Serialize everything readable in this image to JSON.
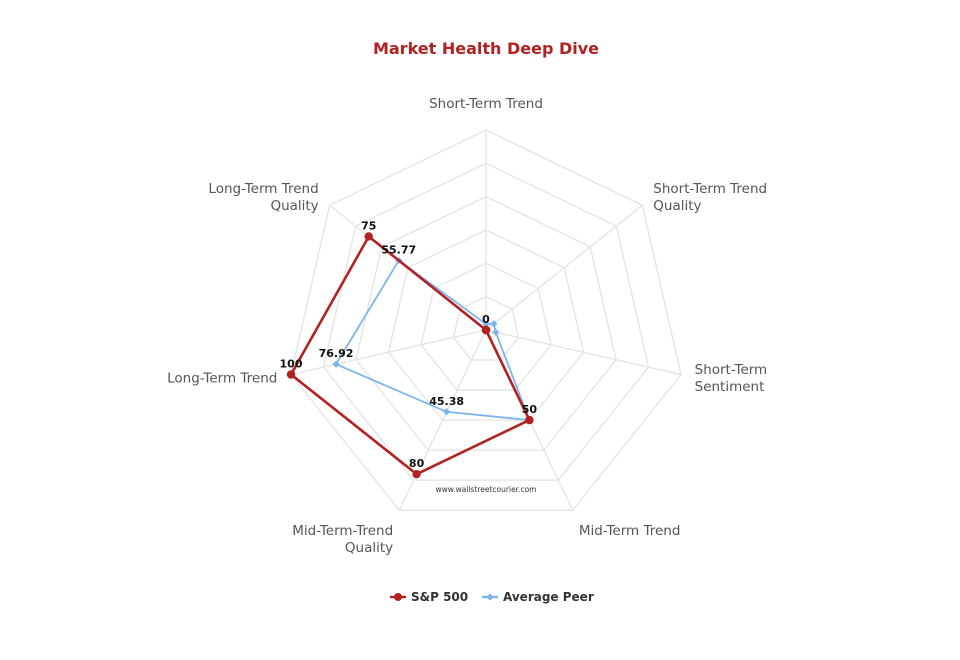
{
  "chart_data": {
    "type": "radar",
    "title": "Market Health Deep Dive",
    "categories": [
      "Short-Term Trend",
      "Short-Term Trend Quality",
      "Short-Term Sentiment",
      "Mid-Term Trend",
      "Mid-Term-Trend Quality",
      "Long-Term Trend",
      "Long-Term Trend Quality"
    ],
    "category_label_lines": [
      [
        "Short-Term Trend"
      ],
      [
        "Short-Term Trend",
        "Quality"
      ],
      [
        "Short-Term",
        "Sentiment"
      ],
      [
        "Mid-Term Trend"
      ],
      [
        "Mid-Term-Trend",
        "Quality"
      ],
      [
        "Long-Term Trend"
      ],
      [
        "Long-Term Trend",
        "Quality"
      ]
    ],
    "series": [
      {
        "name": "S&P 500",
        "values": [
          0,
          0,
          0,
          50,
          80,
          100,
          75
        ],
        "color": "#b22222",
        "marker": "circle"
      },
      {
        "name": "Average Peer",
        "values": [
          3,
          5,
          5,
          50,
          45.38,
          76.92,
          55.77
        ],
        "color": "#7cb5ec",
        "marker": "diamond"
      }
    ],
    "data_labels": [
      {
        "series": 0,
        "index": 0,
        "text": "0"
      },
      {
        "series": 0,
        "index": 3,
        "text": "50"
      },
      {
        "series": 0,
        "index": 4,
        "text": "80"
      },
      {
        "series": 0,
        "index": 5,
        "text": "100"
      },
      {
        "series": 0,
        "index": 6,
        "text": "75"
      },
      {
        "series": 1,
        "index": 4,
        "text": "45.38"
      },
      {
        "series": 1,
        "index": 5,
        "text": "76.92"
      },
      {
        "series": 1,
        "index": 6,
        "text": "55.77"
      }
    ],
    "ylim": [
      0,
      100
    ],
    "grid_levels": 6,
    "grid": true,
    "legend_position": "bottom",
    "watermark": "www.wallstreetcourier.com"
  }
}
